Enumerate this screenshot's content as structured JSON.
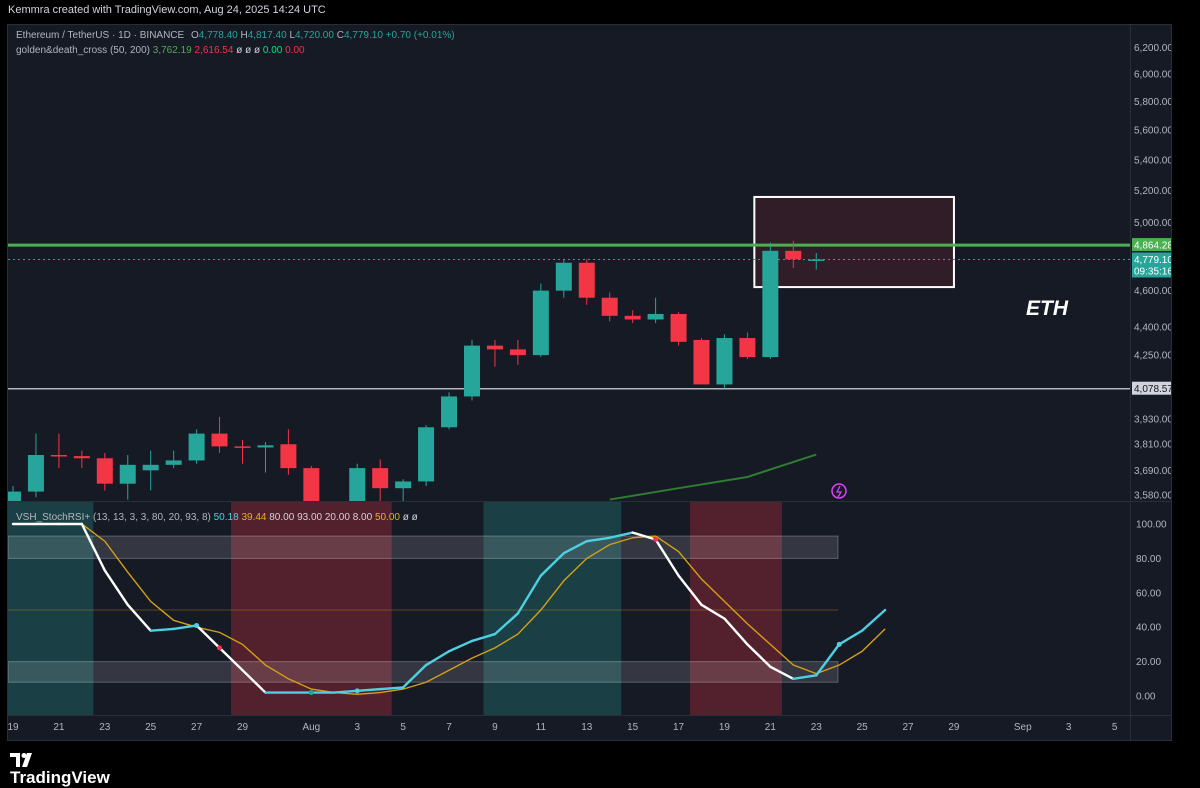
{
  "credit": "Kemmra created with TradingView.com, Aug 24, 2025 14:24 UTC",
  "brand": "TradingView",
  "symbol": {
    "name": "Ethereum / TetherUS · 1D · BINANCE",
    "o_label": "O",
    "o": "4,778.40",
    "h_label": "H",
    "h": "4,817.40",
    "l_label": "L",
    "l": "4,720.00",
    "c_label": "C",
    "c": "4,779.10",
    "change": "+0.70 (+0.01%)"
  },
  "ma_legend": {
    "name": "golden&death_cross (50, 200)",
    "v1": "3,762.19",
    "v2": "2,616.54",
    "v3": "ø ø ø",
    "v4": "0.00",
    "v5": "0.00"
  },
  "stoch_legend": {
    "name": "VSH_StochRSI+ (13, 13, 3, 3, 80, 20, 93, 8)",
    "v1": "50.18",
    "v2": "39.44",
    "v3": "80.00",
    "v4": "93.00",
    "v5": "20.00",
    "v6": "8.00",
    "v7": "50.00",
    "v8": "ø ø"
  },
  "annotation": "ETH",
  "colors": {
    "up": "#26a69a",
    "down": "#f23645",
    "bg": "#161a25",
    "ma": "#2e7d32",
    "resistance": "#4caf50",
    "k": "#ffffff",
    "k_rising": "#4dd0e1",
    "d": "#d4a017"
  },
  "chart_data": [
    {
      "type": "candlestick",
      "title": "Ethereum / TetherUS · 1D · BINANCE",
      "x_labels": [
        "19",
        "21",
        "23",
        "25",
        "27",
        "29",
        "Aug",
        "3",
        "5",
        "7",
        "9",
        "11",
        "13",
        "15",
        "17",
        "19",
        "21",
        "23",
        "25",
        "27",
        "29",
        "Sep",
        "3",
        "5"
      ],
      "y_ticks": [
        "6,200.00",
        "6,000.00",
        "5,800.00",
        "5,600.00",
        "5,400.00",
        "5,200.00",
        "5,000.00",
        "4,600.00",
        "4,400.00",
        "4,250.00",
        "3,930.00",
        "3,810.00",
        "3,690.00",
        "3,580.00"
      ],
      "scale": "log",
      "ylim": [
        3550,
        6300
      ],
      "candles": [
        {
          "date": "2025-07-19",
          "o": 3530,
          "h": 3620,
          "l": 3500,
          "c": 3595
        },
        {
          "date": "2025-07-20",
          "o": 3595,
          "h": 3860,
          "l": 3570,
          "c": 3760
        },
        {
          "date": "2025-07-21",
          "o": 3760,
          "h": 3860,
          "l": 3700,
          "c": 3755
        },
        {
          "date": "2025-07-22",
          "o": 3755,
          "h": 3780,
          "l": 3700,
          "c": 3745
        },
        {
          "date": "2025-07-23",
          "o": 3745,
          "h": 3770,
          "l": 3600,
          "c": 3630
        },
        {
          "date": "2025-07-24",
          "o": 3630,
          "h": 3760,
          "l": 3560,
          "c": 3715
        },
        {
          "date": "2025-07-25",
          "o": 3690,
          "h": 3780,
          "l": 3600,
          "c": 3715
        },
        {
          "date": "2025-07-26",
          "o": 3715,
          "h": 3780,
          "l": 3700,
          "c": 3735
        },
        {
          "date": "2025-07-27",
          "o": 3735,
          "h": 3880,
          "l": 3720,
          "c": 3860
        },
        {
          "date": "2025-07-28",
          "o": 3860,
          "h": 3940,
          "l": 3770,
          "c": 3800
        },
        {
          "date": "2025-07-29",
          "o": 3800,
          "h": 3830,
          "l": 3720,
          "c": 3795
        },
        {
          "date": "2025-07-30",
          "o": 3795,
          "h": 3820,
          "l": 3680,
          "c": 3805
        },
        {
          "date": "2025-07-31",
          "o": 3810,
          "h": 3880,
          "l": 3670,
          "c": 3700
        },
        {
          "date": "2025-08-01",
          "o": 3700,
          "h": 3710,
          "l": 3480,
          "c": 3500
        },
        {
          "date": "2025-08-02",
          "o": 3500,
          "h": 3520,
          "l": 3370,
          "c": 3400
        },
        {
          "date": "2025-08-03",
          "o": 3400,
          "h": 3720,
          "l": 3380,
          "c": 3700
        },
        {
          "date": "2025-08-04",
          "o": 3700,
          "h": 3740,
          "l": 3550,
          "c": 3610
        },
        {
          "date": "2025-08-05",
          "o": 3610,
          "h": 3650,
          "l": 3550,
          "c": 3640
        },
        {
          "date": "2025-08-06",
          "o": 3640,
          "h": 3900,
          "l": 3620,
          "c": 3890
        },
        {
          "date": "2025-08-07",
          "o": 3890,
          "h": 4060,
          "l": 3880,
          "c": 4040
        },
        {
          "date": "2025-08-08",
          "o": 4040,
          "h": 4330,
          "l": 4020,
          "c": 4300
        },
        {
          "date": "2025-08-09",
          "o": 4300,
          "h": 4330,
          "l": 4190,
          "c": 4280
        },
        {
          "date": "2025-08-10",
          "o": 4280,
          "h": 4330,
          "l": 4200,
          "c": 4250
        },
        {
          "date": "2025-08-11",
          "o": 4250,
          "h": 4640,
          "l": 4240,
          "c": 4600
        },
        {
          "date": "2025-08-12",
          "o": 4600,
          "h": 4780,
          "l": 4560,
          "c": 4760
        },
        {
          "date": "2025-08-13",
          "o": 4760,
          "h": 4780,
          "l": 4520,
          "c": 4560
        },
        {
          "date": "2025-08-14",
          "o": 4560,
          "h": 4590,
          "l": 4430,
          "c": 4460
        },
        {
          "date": "2025-08-15",
          "o": 4460,
          "h": 4490,
          "l": 4420,
          "c": 4440
        },
        {
          "date": "2025-08-16",
          "o": 4440,
          "h": 4560,
          "l": 4420,
          "c": 4470
        },
        {
          "date": "2025-08-17",
          "o": 4470,
          "h": 4480,
          "l": 4300,
          "c": 4320
        },
        {
          "date": "2025-08-18",
          "o": 4330,
          "h": 4340,
          "l": 4100,
          "c": 4100
        },
        {
          "date": "2025-08-19",
          "o": 4100,
          "h": 4360,
          "l": 4080,
          "c": 4340
        },
        {
          "date": "2025-08-20",
          "o": 4340,
          "h": 4370,
          "l": 4230,
          "c": 4240
        },
        {
          "date": "2025-08-21",
          "o": 4240,
          "h": 4880,
          "l": 4230,
          "c": 4830
        },
        {
          "date": "2025-08-22",
          "o": 4830,
          "h": 4890,
          "l": 4730,
          "c": 4780
        },
        {
          "date": "2025-08-23",
          "o": 4778.4,
          "h": 4817.4,
          "l": 4720,
          "c": 4779.1
        }
      ],
      "ma_segments": [
        {
          "date": "2025-08-14",
          "value": 3560
        },
        {
          "date": "2025-08-17",
          "value": 3610
        },
        {
          "date": "2025-08-20",
          "value": 3660
        },
        {
          "date": "2025-08-23",
          "value": 3762.19
        }
      ],
      "levels": [
        {
          "label": "4,864.28",
          "value": 4864.28,
          "style": "resistance"
        },
        {
          "label": "4,779.10",
          "value": 4779.1,
          "style": "last"
        },
        {
          "label": "09:35:16",
          "value": null,
          "style": "countdown"
        },
        {
          "label": "4,078.57",
          "value": 4078.57,
          "style": "support"
        }
      ],
      "box": {
        "from": "2025-08-21",
        "to": "2025-08-29",
        "low": 4620,
        "high": 5160
      }
    },
    {
      "type": "line",
      "title": "VSH_StochRSI+ (13, 13, 3, 3, 80, 20, 93, 8)",
      "y_ticks": [
        "100.00",
        "80.00",
        "60.00",
        "40.00",
        "20.00",
        "0.00"
      ],
      "ylim": [
        0,
        100
      ],
      "k": [
        100,
        100,
        100,
        100,
        73,
        53,
        38,
        39,
        41,
        28,
        15,
        2,
        2,
        2,
        2,
        3,
        4,
        5,
        18,
        26,
        32,
        36,
        48,
        70,
        83,
        90,
        92,
        95,
        91,
        70,
        53,
        45,
        30,
        17,
        10,
        12,
        30,
        38,
        50
      ],
      "d": [
        100,
        100,
        100,
        100,
        90,
        72,
        55,
        44,
        40,
        37,
        30,
        18,
        10,
        4,
        2,
        1,
        2,
        4,
        8,
        15,
        22,
        28,
        36,
        50,
        67,
        80,
        88,
        92,
        93,
        84,
        68,
        55,
        42,
        30,
        18,
        13,
        18,
        26,
        39
      ],
      "bands": [
        {
          "name": "overbought",
          "low": 80,
          "high": 93
        },
        {
          "name": "oversold",
          "low": 8,
          "high": 20
        }
      ],
      "midline": 50,
      "zones": [
        {
          "from": "2025-07-19",
          "to": "2025-07-22",
          "kind": "overbought"
        },
        {
          "from": "2025-07-29",
          "to": "2025-08-04",
          "kind": "oversold"
        },
        {
          "from": "2025-08-09",
          "to": "2025-08-14",
          "kind": "overbought"
        },
        {
          "from": "2025-08-18",
          "to": "2025-08-21",
          "kind": "oversold"
        }
      ]
    }
  ]
}
